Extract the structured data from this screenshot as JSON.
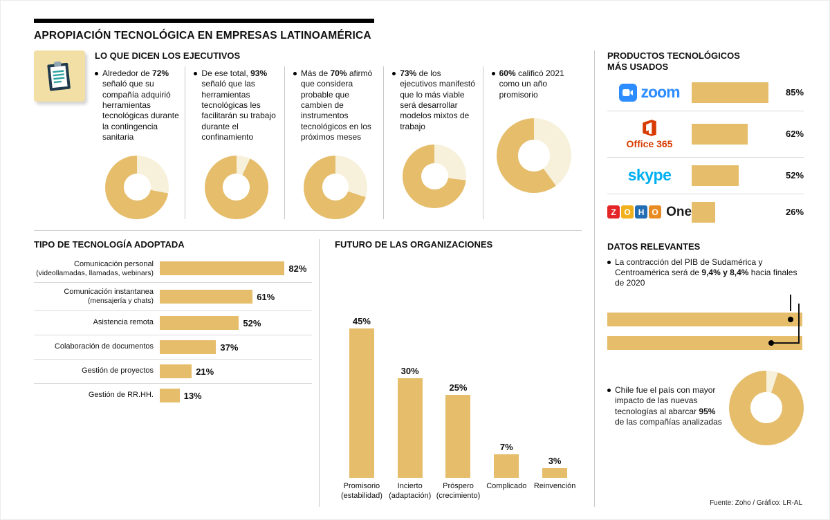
{
  "title": "APROPIACIÓN TECNOLÓGICA EN EMPRESAS LATINOAMÉRICA",
  "colors": {
    "accent": "#E5BD6B",
    "accent_light": "#F7F0DA",
    "zoom_blue": "#2D8CFF",
    "office_red": "#D83B01",
    "skype_blue": "#00AFF0",
    "zoho": [
      "#E42527",
      "#F0B11D",
      "#226DB4",
      "#E98B23"
    ]
  },
  "executives": {
    "heading": "LO QUE DICEN LOS EJECUTIVOS",
    "items": [
      {
        "pre": "Alrededor de ",
        "bold": "72%",
        "post": " señaló que su compañía adquirió herramientas tecnológicas durante la contingencia sanitaria",
        "value": 72
      },
      {
        "pre": "De ese total, ",
        "bold": "93%",
        "post": " señaló que las herramientas tecnológicas les facilitarán su trabajo durante el confinamiento",
        "value": 93
      },
      {
        "pre": "Más de ",
        "bold": "70%",
        "post": " afirmó que considera probable que cambien de instrumentos tecnológicos en los próximos meses",
        "value": 70
      },
      {
        "pre": "",
        "bold": "73%",
        "post": " de los ejecutivos manifestó que lo más viable será desarrollar modelos mixtos de trabajo",
        "value": 73
      },
      {
        "pre": "",
        "bold": "60%",
        "post": " calificó 2021 como un año promisorio",
        "value": 60
      }
    ]
  },
  "products": {
    "heading_line1": "PRODUCTOS TECNOLÓGICOS",
    "heading_line2": "MÁS USADOS",
    "items": [
      {
        "name": "zoom",
        "value": 85,
        "label": "85%"
      },
      {
        "name": "Office 365",
        "value": 62,
        "label": "62%"
      },
      {
        "name": "skype",
        "value": 52,
        "label": "52%"
      },
      {
        "name": "ZOHO One",
        "value": 26,
        "label": "26%"
      }
    ],
    "zoho_letters": [
      "Z",
      "O",
      "H",
      "O"
    ],
    "zoho_suffix": "One"
  },
  "technology": {
    "heading": "TIPO DE TECNOLOGÍA ADOPTADA",
    "rows": [
      {
        "name": "Comunicación personal",
        "sub": "(videollamadas, llamadas, webinars)",
        "value": 82,
        "label": "82%"
      },
      {
        "name": "Comunicación instantanea",
        "sub": "(mensajería y chats)",
        "value": 61,
        "label": "61%"
      },
      {
        "name": "Asistencia remota",
        "sub": "",
        "value": 52,
        "label": "52%"
      },
      {
        "name": "Colaboración de documentos",
        "sub": "",
        "value": 37,
        "label": "37%"
      },
      {
        "name": "Gestión de proyectos",
        "sub": "",
        "value": 21,
        "label": "21%"
      },
      {
        "name": "Gestión de RR.HH.",
        "sub": "",
        "value": 13,
        "label": "13%"
      }
    ]
  },
  "future": {
    "heading": "FUTURO DE LAS ORGANIZACIONES",
    "bars": [
      {
        "label": "45%",
        "value": 45,
        "cat1": "Promisorio",
        "cat2": "(estabilidad)"
      },
      {
        "label": "30%",
        "value": 30,
        "cat1": "Incierto",
        "cat2": "(adaptación)"
      },
      {
        "label": "25%",
        "value": 25,
        "cat1": "Próspero",
        "cat2": "(crecimiento)"
      },
      {
        "label": "7%",
        "value": 7,
        "cat1": "Complicado",
        "cat2": ""
      },
      {
        "label": "3%",
        "value": 3,
        "cat1": "Reinvención",
        "cat2": ""
      }
    ]
  },
  "relevant": {
    "heading": "DATOS RELEVANTES",
    "pib": {
      "pre": "La contracción del PIB de Sudamérica y Centroamérica será de ",
      "bold": "9,4% y 8,4%",
      "post": " hacia finales de 2020",
      "values": [
        9.4,
        8.4
      ]
    },
    "chile": {
      "pre": "Chile fue el país con mayor impacto de las nuevas tecnologías al abarcar ",
      "bold": "95%",
      "post": " de las compañías analizadas",
      "value": 95
    }
  },
  "source": "Fuente: Zoho / Gráfico: LR-AL",
  "chart_data": [
    {
      "type": "pie",
      "title": "LO QUE DICEN LOS EJECUTIVOS",
      "items": [
        {
          "label": "Señaló que su compañía adquirió herramientas tecnológicas durante la contingencia sanitaria",
          "value": 72
        },
        {
          "label": "Señaló que las herramientas tecnológicas les facilitarán su trabajo durante el confinamiento",
          "value": 93
        },
        {
          "label": "Afirmó que considera probable que cambien de instrumentos tecnológicos en los próximos meses",
          "value": 70
        },
        {
          "label": "Manifestó que lo más viable será desarrollar modelos mixtos de trabajo",
          "value": 73
        },
        {
          "label": "Calificó 2021 como un año promisorio",
          "value": 60
        }
      ],
      "unit": "%"
    },
    {
      "type": "bar",
      "orientation": "horizontal",
      "title": "PRODUCTOS TECNOLÓGICOS MÁS USADOS",
      "categories": [
        "Zoom",
        "Office 365",
        "Skype",
        "Zoho One"
      ],
      "values": [
        85,
        62,
        52,
        26
      ],
      "unit": "%"
    },
    {
      "type": "bar",
      "orientation": "horizontal",
      "title": "TIPO DE TECNOLOGÍA ADOPTADA",
      "categories": [
        "Comunicación personal (videollamadas, llamadas, webinars)",
        "Comunicación instantanea (mensajería y chats)",
        "Asistencia remota",
        "Colaboración de documentos",
        "Gestión de proyectos",
        "Gestión de RR.HH."
      ],
      "values": [
        82,
        61,
        52,
        37,
        21,
        13
      ],
      "unit": "%"
    },
    {
      "type": "bar",
      "orientation": "vertical",
      "title": "FUTURO DE LAS ORGANIZACIONES",
      "categories": [
        "Promisorio (estabilidad)",
        "Incierto (adaptación)",
        "Próspero (crecimiento)",
        "Complicado",
        "Reinvención"
      ],
      "values": [
        45,
        30,
        25,
        7,
        3
      ],
      "unit": "%"
    },
    {
      "type": "bar",
      "orientation": "horizontal",
      "title": "Contracción del PIB hacia finales de 2020",
      "categories": [
        "Sudamérica",
        "Centroamérica"
      ],
      "values": [
        9.4,
        8.4
      ],
      "unit": "%"
    },
    {
      "type": "pie",
      "title": "Chile: compañías analizadas con impacto de nuevas tecnologías",
      "labels": [
        "Con impacto",
        "Resto"
      ],
      "values": [
        95,
        5
      ],
      "unit": "%"
    }
  ]
}
